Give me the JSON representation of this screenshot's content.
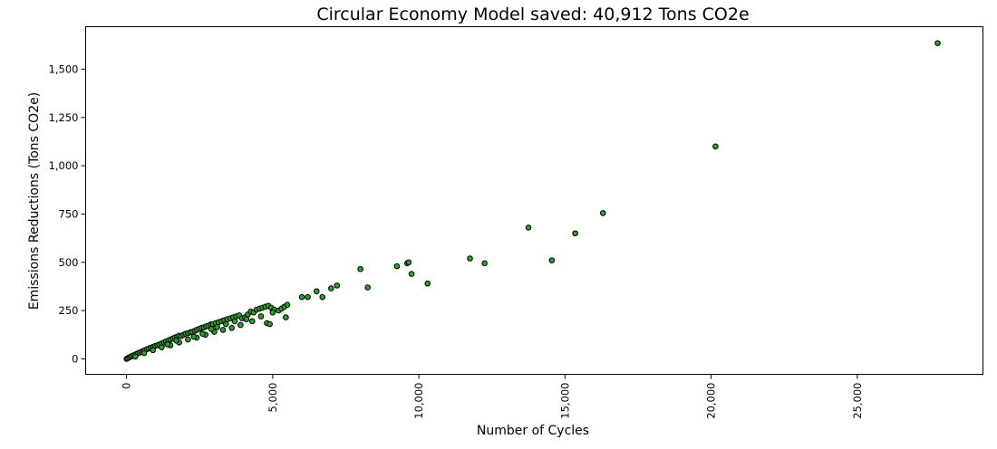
{
  "chart_data": {
    "type": "scatter",
    "title": "Circular Economy Model saved: 40,912 Tons CO2e",
    "xlabel": "Number of Cycles",
    "ylabel": "Emissions Reductions (Tons CO2e)",
    "xlim": [
      -1400,
      29300
    ],
    "ylim": [
      -80,
      1720
    ],
    "x_ticks": [
      0,
      5000,
      10000,
      15000,
      20000,
      25000
    ],
    "x_tick_labels": [
      "0",
      "5,000",
      "10,000",
      "15,000",
      "20,000",
      "25,000"
    ],
    "y_ticks": [
      0,
      250,
      500,
      750,
      1000,
      1250,
      1500
    ],
    "y_tick_labels": [
      "0",
      "250",
      "500",
      "750",
      "1,000",
      "1,250",
      "1,500"
    ],
    "grid": false,
    "marker_color": "#2ca02c",
    "marker_edge_color": "#000000",
    "series": [
      {
        "x": [
          0,
          50,
          100,
          150,
          200,
          260,
          320,
          380,
          440,
          500,
          560,
          620,
          700,
          760,
          830,
          900,
          970,
          1050,
          1120,
          1200,
          1280,
          1350,
          1430,
          1500,
          1580,
          1650,
          1730,
          1800,
          1870,
          1950,
          2020,
          2100,
          2180,
          2250,
          2330,
          2400,
          2480,
          2560,
          2640,
          2720,
          2800,
          2880,
          2950,
          3050,
          3150,
          3250,
          3350,
          3450,
          3550,
          3650,
          3750,
          3850,
          3950,
          4050,
          4150,
          4250,
          4350,
          4450,
          4550,
          4650,
          4750,
          4850,
          4950,
          5050,
          5200,
          5300,
          5400,
          5500,
          5000,
          4800,
          4300,
          3900,
          3600,
          3300,
          3000,
          2700,
          2400,
          2100,
          1800,
          1500,
          1200,
          900,
          600,
          300,
          1400,
          1700,
          2300,
          2600,
          2900,
          3100,
          3400,
          3700,
          4100,
          4600,
          4900,
          5450,
          6000,
          6200,
          6500,
          6700,
          7000,
          7200,
          8000,
          8250,
          9250,
          9600,
          9650,
          9750,
          10300,
          11750,
          12250,
          13750,
          14550,
          15350,
          16300,
          20150,
          27750
        ],
        "y": [
          0,
          4,
          8,
          12,
          16,
          20,
          24,
          28,
          32,
          36,
          40,
          44,
          50,
          54,
          58,
          62,
          66,
          70,
          74,
          80,
          85,
          90,
          95,
          100,
          105,
          110,
          115,
          120,
          118,
          125,
          130,
          133,
          138,
          140,
          145,
          150,
          155,
          160,
          163,
          168,
          172,
          178,
          180,
          185,
          190,
          195,
          200,
          205,
          210,
          215,
          220,
          225,
          210,
          215,
          230,
          245,
          240,
          255,
          260,
          265,
          270,
          275,
          265,
          255,
          250,
          260,
          270,
          280,
          240,
          185,
          195,
          175,
          160,
          150,
          140,
          125,
          110,
          100,
          85,
          70,
          60,
          45,
          30,
          12,
          75,
          95,
          115,
          130,
          155,
          165,
          180,
          195,
          205,
          220,
          180,
          215,
          320,
          320,
          350,
          320,
          365,
          380,
          465,
          370,
          480,
          495,
          500,
          440,
          390,
          520,
          495,
          680,
          510,
          650,
          755,
          1100,
          1635
        ]
      }
    ]
  }
}
